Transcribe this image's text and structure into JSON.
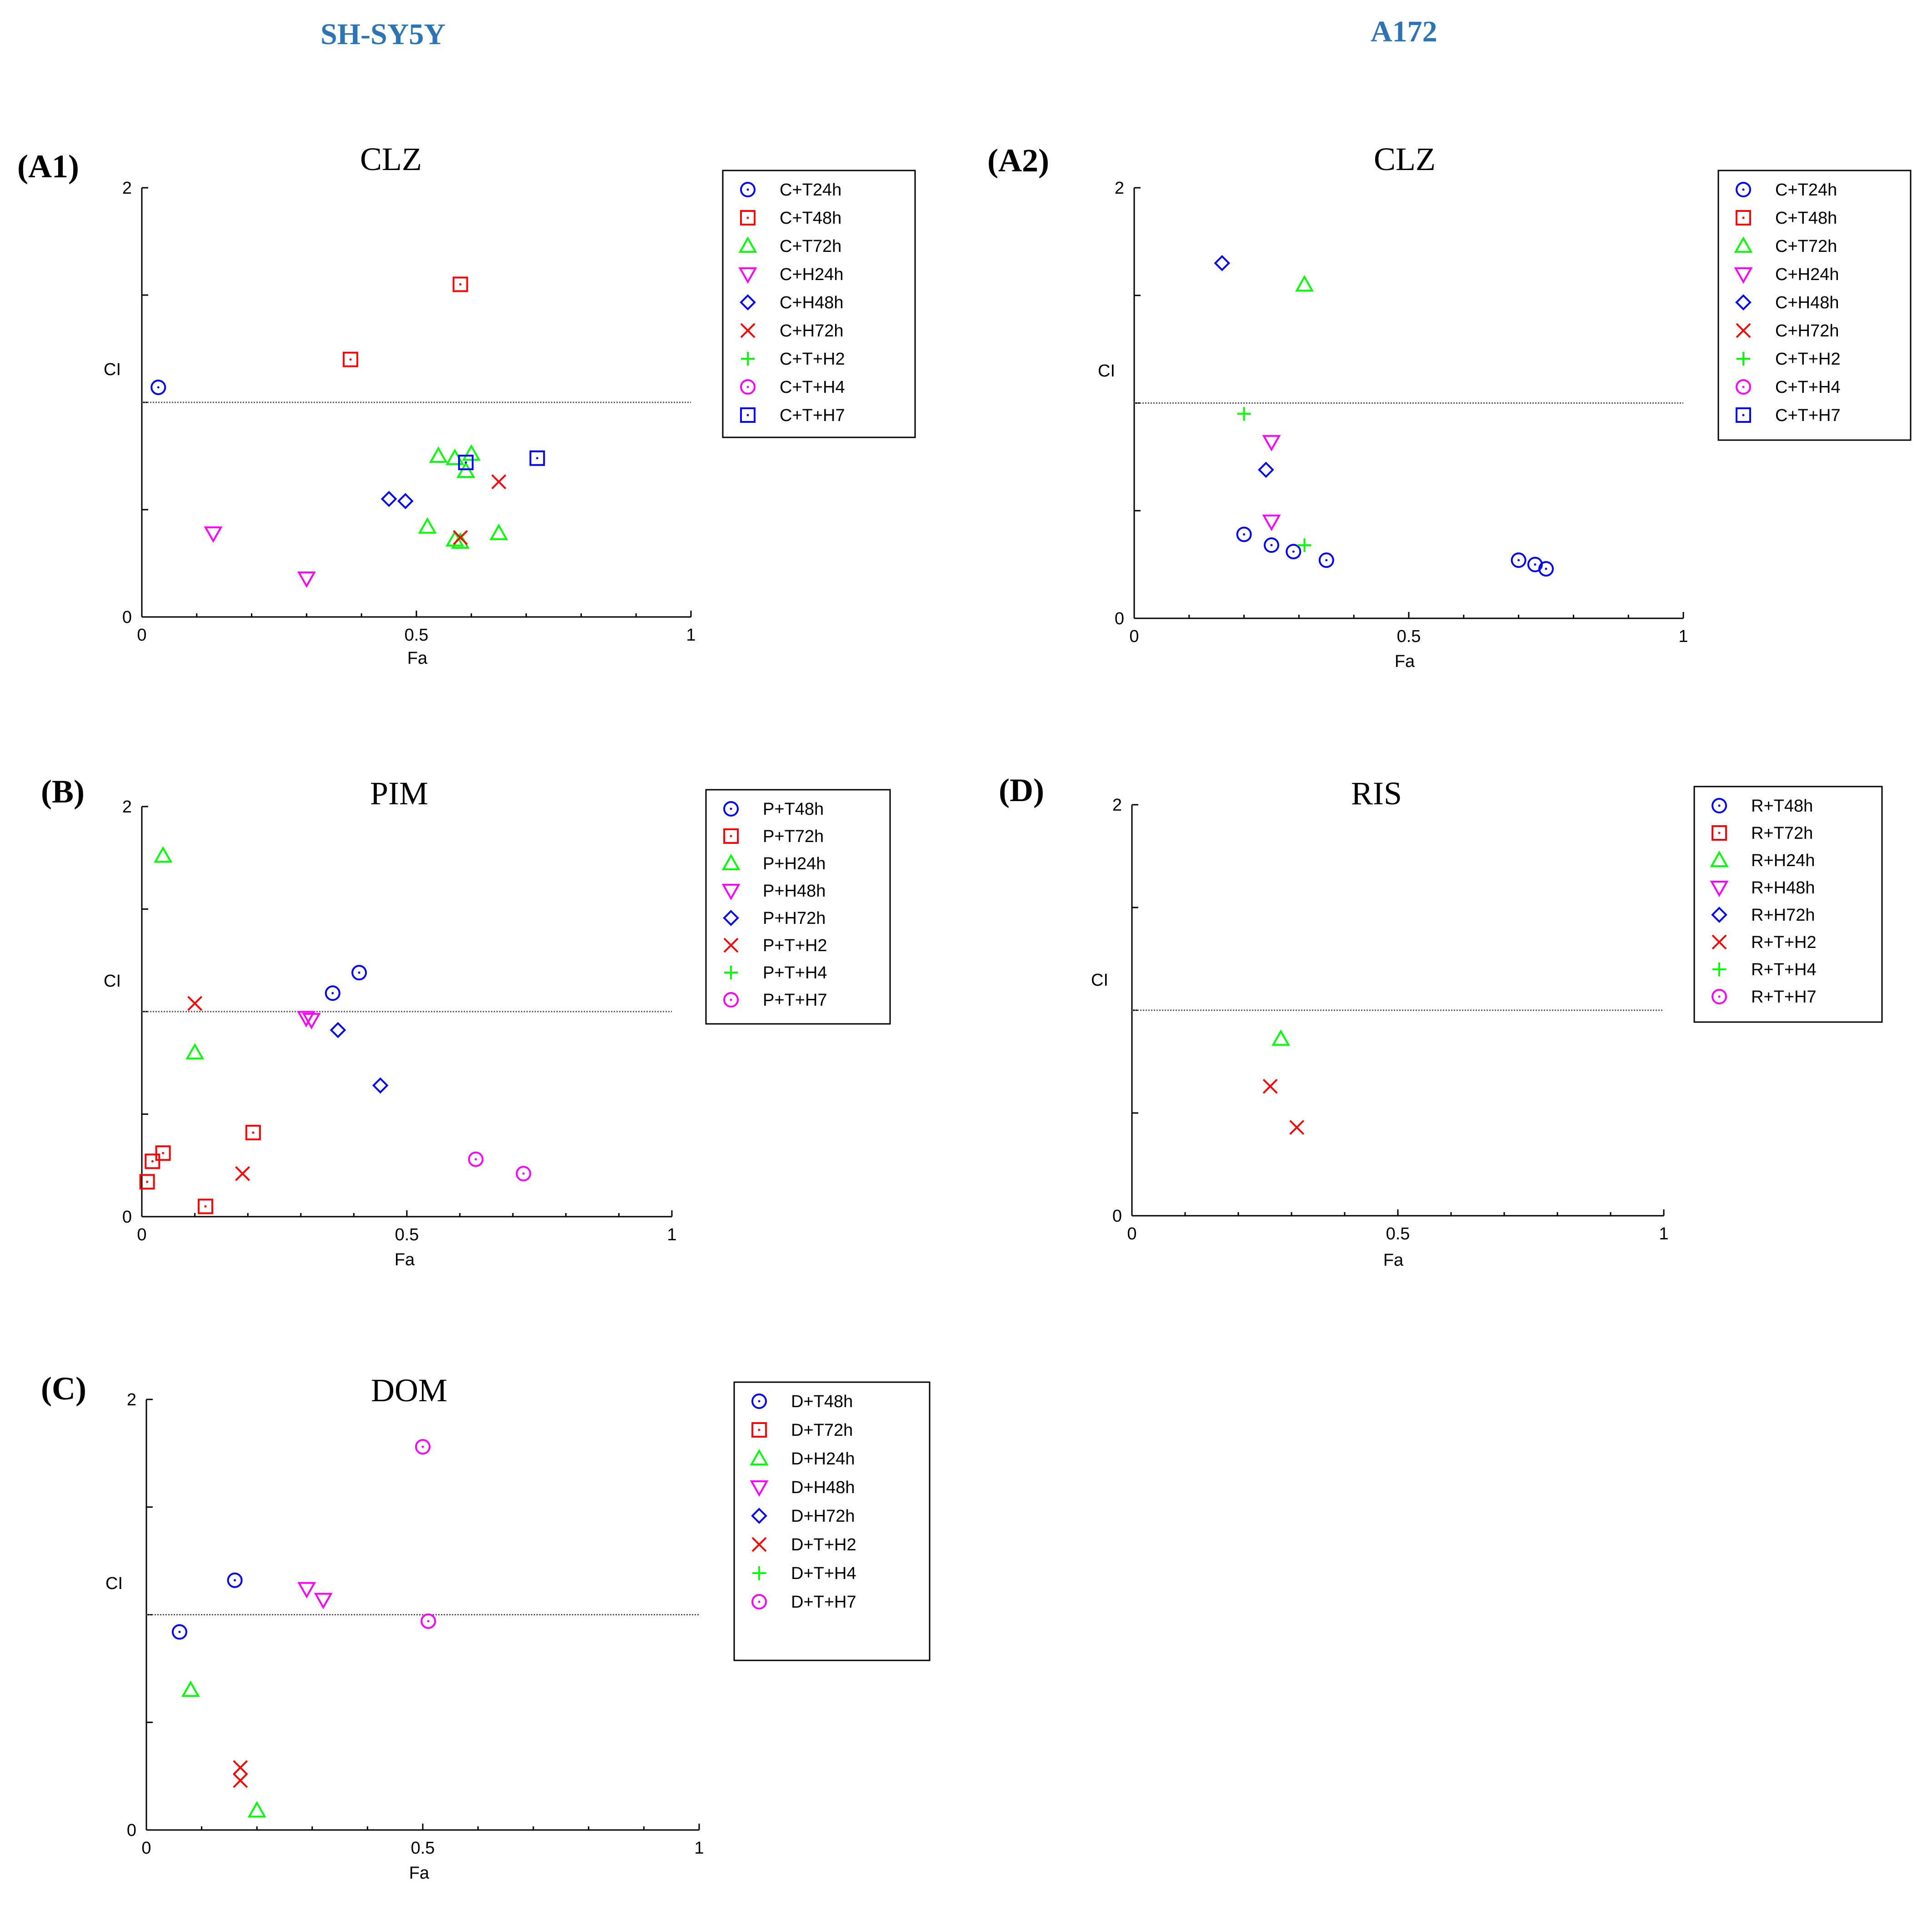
{
  "header": {
    "left_cell_line": "SH-SY5Y",
    "right_cell_line": "A172",
    "color": "#2e74b5"
  },
  "chart_data": [
    {
      "id": "A1",
      "label": "(A1)",
      "type": "scatter",
      "title": "CLZ",
      "xlabel": "Fa",
      "ylabel": "CI",
      "xlim": [
        0,
        1
      ],
      "ylim": [
        0,
        2
      ],
      "xticks": [
        "0",
        "0.5",
        "1"
      ],
      "yticks": [
        "0",
        "2"
      ],
      "reference_line": 1,
      "series": [
        {
          "name": "C+T24h",
          "marker": "circle",
          "color": "#0000ff",
          "points": [
            [
              0.03,
              1.07
            ]
          ]
        },
        {
          "name": "C+T48h",
          "marker": "square",
          "color": "#ff0000",
          "points": [
            [
              0.58,
              1.55
            ],
            [
              0.38,
              1.2
            ]
          ]
        },
        {
          "name": "C+T72h",
          "marker": "triangle-up",
          "color": "#00ff00",
          "points": [
            [
              0.54,
              0.75
            ],
            [
              0.6,
              0.76
            ],
            [
              0.57,
              0.74
            ],
            [
              0.59,
              0.68
            ],
            [
              0.52,
              0.42
            ],
            [
              0.57,
              0.36
            ],
            [
              0.58,
              0.35
            ],
            [
              0.65,
              0.39
            ]
          ]
        },
        {
          "name": "C+H24h",
          "marker": "triangle-down",
          "color": "#ff00ff",
          "points": [
            [
              0.13,
              0.39
            ],
            [
              0.3,
              0.18
            ]
          ]
        },
        {
          "name": "C+H48h",
          "marker": "diamond",
          "color": "#0000ff",
          "points": [
            [
              0.45,
              0.55
            ],
            [
              0.48,
              0.54
            ]
          ]
        },
        {
          "name": "C+H72h",
          "marker": "x",
          "color": "#ff0000",
          "points": [
            [
              0.65,
              0.63
            ],
            [
              0.58,
              0.37
            ]
          ]
        },
        {
          "name": "C+T+H2",
          "marker": "plus",
          "color": "#00ff00",
          "points": []
        },
        {
          "name": "C+T+H4",
          "marker": "circle",
          "color": "#ff00ff",
          "points": []
        },
        {
          "name": "C+T+H7",
          "marker": "square",
          "color": "#0000ff",
          "points": [
            [
              0.59,
              0.72
            ],
            [
              0.72,
              0.74
            ]
          ]
        }
      ]
    },
    {
      "id": "A2",
      "label": "(A2)",
      "type": "scatter",
      "title": "CLZ",
      "xlabel": "Fa",
      "ylabel": "CI",
      "xlim": [
        0,
        1
      ],
      "ylim": [
        0,
        2
      ],
      "xticks": [
        "0",
        "0.5",
        "1"
      ],
      "yticks": [
        "0",
        "2"
      ],
      "reference_line": 1,
      "series": [
        {
          "name": "C+T24h",
          "marker": "circle",
          "color": "#0000ff",
          "points": [
            [
              0.2,
              0.39
            ],
            [
              0.25,
              0.34
            ],
            [
              0.29,
              0.31
            ],
            [
              0.35,
              0.27
            ],
            [
              0.7,
              0.27
            ],
            [
              0.73,
              0.25
            ],
            [
              0.75,
              0.23
            ]
          ]
        },
        {
          "name": "C+T48h",
          "marker": "square",
          "color": "#ff0000",
          "points": []
        },
        {
          "name": "C+T72h",
          "marker": "triangle-up",
          "color": "#00ff00",
          "points": [
            [
              0.31,
              1.55
            ]
          ]
        },
        {
          "name": "C+H24h",
          "marker": "triangle-down",
          "color": "#ff00ff",
          "points": [
            [
              0.25,
              0.82
            ],
            [
              0.25,
              0.45
            ]
          ]
        },
        {
          "name": "C+H48h",
          "marker": "diamond",
          "color": "#0000ff",
          "points": [
            [
              0.16,
              1.65
            ],
            [
              0.24,
              0.69
            ]
          ]
        },
        {
          "name": "C+H72h",
          "marker": "x",
          "color": "#ff0000",
          "points": []
        },
        {
          "name": "C+T+H2",
          "marker": "plus",
          "color": "#00ff00",
          "points": [
            [
              0.2,
              0.95
            ],
            [
              0.31,
              0.34
            ]
          ]
        },
        {
          "name": "C+T+H4",
          "marker": "circle",
          "color": "#ff00ff",
          "points": []
        },
        {
          "name": "C+T+H7",
          "marker": "square",
          "color": "#0000ff",
          "points": []
        }
      ]
    },
    {
      "id": "B",
      "label": "(B)",
      "type": "scatter",
      "title": "PIM",
      "xlabel": "Fa",
      "ylabel": "CI",
      "xlim": [
        0,
        1
      ],
      "ylim": [
        0,
        2
      ],
      "xticks": [
        "0",
        "0.5",
        "1"
      ],
      "yticks": [
        "0",
        "2"
      ],
      "reference_line": 1,
      "series": [
        {
          "name": "P+T48h",
          "marker": "circle",
          "color": "#0000ff",
          "points": [
            [
              0.41,
              1.19
            ],
            [
              0.36,
              1.09
            ]
          ]
        },
        {
          "name": "P+T72h",
          "marker": "square",
          "color": "#ff0000",
          "points": [
            [
              0.21,
              0.41
            ],
            [
              0.04,
              0.31
            ],
            [
              0.02,
              0.27
            ],
            [
              0.01,
              0.17
            ],
            [
              0.12,
              0.05
            ]
          ]
        },
        {
          "name": "P+H24h",
          "marker": "triangle-up",
          "color": "#00ff00",
          "points": [
            [
              0.04,
              1.76
            ],
            [
              0.1,
              0.8
            ]
          ]
        },
        {
          "name": "P+H48h",
          "marker": "triangle-down",
          "color": "#ff00ff",
          "points": [
            [
              0.31,
              0.97
            ],
            [
              0.32,
              0.96
            ]
          ]
        },
        {
          "name": "P+H72h",
          "marker": "diamond",
          "color": "#0000ff",
          "points": [
            [
              0.37,
              0.91
            ],
            [
              0.45,
              0.64
            ]
          ]
        },
        {
          "name": "P+T+H2",
          "marker": "x",
          "color": "#ff0000",
          "points": [
            [
              0.1,
              1.04
            ],
            [
              0.19,
              0.21
            ]
          ]
        },
        {
          "name": "P+T+H4",
          "marker": "plus",
          "color": "#00ff00",
          "points": []
        },
        {
          "name": "P+T+H7",
          "marker": "circle",
          "color": "#ff00ff",
          "points": [
            [
              0.63,
              0.28
            ],
            [
              0.72,
              0.21
            ]
          ]
        }
      ]
    },
    {
      "id": "D",
      "label": "(D)",
      "type": "scatter",
      "title": "RIS",
      "xlabel": "Fa",
      "ylabel": "CI",
      "xlim": [
        0,
        1
      ],
      "ylim": [
        0,
        2
      ],
      "xticks": [
        "0",
        "0.5",
        "1"
      ],
      "yticks": [
        "0",
        "2"
      ],
      "reference_line": 1,
      "series": [
        {
          "name": "R+T48h",
          "marker": "circle",
          "color": "#0000ff",
          "points": []
        },
        {
          "name": "R+T72h",
          "marker": "square",
          "color": "#ff0000",
          "points": []
        },
        {
          "name": "R+H24h",
          "marker": "triangle-up",
          "color": "#00ff00",
          "points": [
            [
              0.28,
              0.86
            ]
          ]
        },
        {
          "name": "R+H48h",
          "marker": "triangle-down",
          "color": "#ff00ff",
          "points": []
        },
        {
          "name": "R+H72h",
          "marker": "diamond",
          "color": "#0000ff",
          "points": []
        },
        {
          "name": "R+T+H2",
          "marker": "x",
          "color": "#ff0000",
          "points": [
            [
              0.26,
              0.63
            ],
            [
              0.31,
              0.43
            ]
          ]
        },
        {
          "name": "R+T+H4",
          "marker": "plus",
          "color": "#00ff00",
          "points": []
        },
        {
          "name": "R+T+H7",
          "marker": "circle",
          "color": "#ff00ff",
          "points": []
        }
      ]
    },
    {
      "id": "C",
      "label": "(C)",
      "type": "scatter",
      "title": "DOM",
      "xlabel": "Fa",
      "ylabel": "CI",
      "xlim": [
        0,
        1
      ],
      "ylim": [
        0,
        2
      ],
      "xticks": [
        "0",
        "0.5",
        "1"
      ],
      "yticks": [
        "0",
        "2"
      ],
      "reference_line": 1,
      "series": [
        {
          "name": "D+T48h",
          "marker": "circle",
          "color": "#0000ff",
          "points": [
            [
              0.16,
              1.16
            ],
            [
              0.06,
              0.92
            ]
          ]
        },
        {
          "name": "D+T72h",
          "marker": "square",
          "color": "#ff0000",
          "points": []
        },
        {
          "name": "D+H24h",
          "marker": "triangle-up",
          "color": "#00ff00",
          "points": [
            [
              0.08,
              0.65
            ],
            [
              0.2,
              0.09
            ]
          ]
        },
        {
          "name": "D+H48h",
          "marker": "triangle-down",
          "color": "#ff00ff",
          "points": [
            [
              0.29,
              1.12
            ],
            [
              0.32,
              1.07
            ]
          ]
        },
        {
          "name": "D+H72h",
          "marker": "diamond",
          "color": "#0000ff",
          "points": []
        },
        {
          "name": "D+T+H2",
          "marker": "x",
          "color": "#ff0000",
          "points": [
            [
              0.17,
              0.29
            ],
            [
              0.17,
              0.23
            ]
          ]
        },
        {
          "name": "D+T+H4",
          "marker": "plus",
          "color": "#00ff00",
          "points": []
        },
        {
          "name": "D+T+H7",
          "marker": "circle",
          "color": "#ff00ff",
          "points": [
            [
              0.5,
              1.78
            ],
            [
              0.51,
              0.97
            ]
          ]
        }
      ]
    }
  ]
}
